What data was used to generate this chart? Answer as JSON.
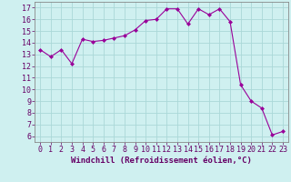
{
  "x": [
    0,
    1,
    2,
    3,
    4,
    5,
    6,
    7,
    8,
    9,
    10,
    11,
    12,
    13,
    14,
    15,
    16,
    17,
    18,
    19,
    20,
    21,
    22,
    23
  ],
  "y": [
    13.4,
    12.8,
    13.4,
    12.2,
    14.3,
    14.1,
    14.2,
    14.4,
    14.6,
    15.1,
    15.9,
    16.0,
    16.9,
    16.9,
    15.6,
    16.9,
    16.4,
    16.9,
    15.8,
    10.4,
    9.0,
    8.4,
    6.1,
    6.4
  ],
  "line_color": "#990099",
  "marker": "D",
  "marker_size": 2.0,
  "bg_color": "#cff0f0",
  "grid_color": "#aad8d8",
  "xlabel": "Windchill (Refroidissement éolien,°C)",
  "xlim": [
    -0.5,
    23.5
  ],
  "ylim": [
    5.5,
    17.5
  ],
  "yticks": [
    6,
    7,
    8,
    9,
    10,
    11,
    12,
    13,
    14,
    15,
    16,
    17
  ],
  "xticks": [
    0,
    1,
    2,
    3,
    4,
    5,
    6,
    7,
    8,
    9,
    10,
    11,
    12,
    13,
    14,
    15,
    16,
    17,
    18,
    19,
    20,
    21,
    22,
    23
  ],
  "xlabel_fontsize": 6.5,
  "tick_fontsize": 6.0,
  "axis_label_color": "#660066",
  "spine_color": "#888888"
}
